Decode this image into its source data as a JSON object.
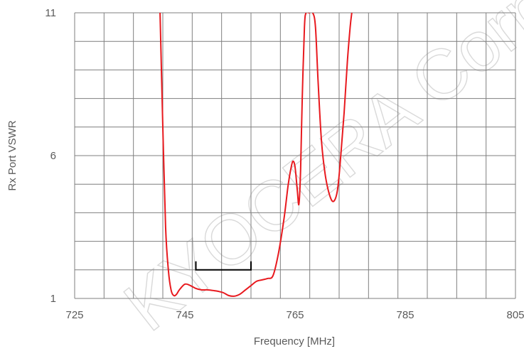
{
  "chart_data": {
    "type": "line",
    "title": "",
    "xlabel": "Frequency [MHz]",
    "ylabel": "Rx Port VSWR",
    "xlim": [
      725,
      805
    ],
    "ylim": [
      1,
      11
    ],
    "x_ticks": [
      725,
      745,
      765,
      785,
      805
    ],
    "x_tick_labels": [
      "725",
      "745",
      "765",
      "785",
      "805"
    ],
    "y_ticks": [
      1,
      6,
      11
    ],
    "y_tick_labels": [
      "1",
      "6",
      "11"
    ],
    "grid": true,
    "legend": "none",
    "colors": {
      "line": "#e8191e",
      "grid": "#7f7f7f",
      "bracket": "#000000",
      "text": "#5a5a5a"
    },
    "series": [
      {
        "x": [
          740.5,
          741.0,
          741.5,
          742.0,
          742.5,
          743.0,
          743.5,
          744.0,
          745.0,
          746.0,
          747.0,
          748.0,
          749.0,
          750.0,
          751.0,
          752.0,
          753.0,
          754.0,
          755.0,
          756.0,
          757.0,
          758.0,
          759.0,
          760.0,
          761.0,
          762.0,
          763.0,
          763.7,
          764.2,
          764.6,
          765.0,
          765.4,
          765.7,
          766.0,
          766.3,
          766.7,
          767.0,
          767.5,
          768.2,
          768.7,
          769.2,
          769.8,
          770.5,
          771.3,
          772.0,
          772.7,
          773.3,
          773.9,
          774.5,
          775.0,
          775.3
        ],
        "y": [
          11.0,
          7.0,
          3.5,
          2.0,
          1.3,
          1.1,
          1.15,
          1.3,
          1.5,
          1.45,
          1.35,
          1.3,
          1.3,
          1.28,
          1.25,
          1.2,
          1.1,
          1.08,
          1.15,
          1.3,
          1.45,
          1.6,
          1.65,
          1.7,
          1.8,
          2.6,
          3.8,
          4.9,
          5.5,
          5.8,
          5.6,
          4.8,
          4.3,
          5.5,
          8.0,
          10.5,
          11.0,
          11.0,
          11.0,
          10.5,
          8.5,
          6.5,
          5.3,
          4.6,
          4.4,
          4.8,
          6.0,
          7.5,
          9.3,
          10.5,
          11.0
        ]
      }
    ],
    "annotations": [
      {
        "type": "bracket",
        "x_start": 747.0,
        "x_end": 757.0,
        "y": 2.0,
        "tick_height": 0.3
      }
    ]
  },
  "watermark_text": "KYOCERA Corporation, all rights reserved"
}
